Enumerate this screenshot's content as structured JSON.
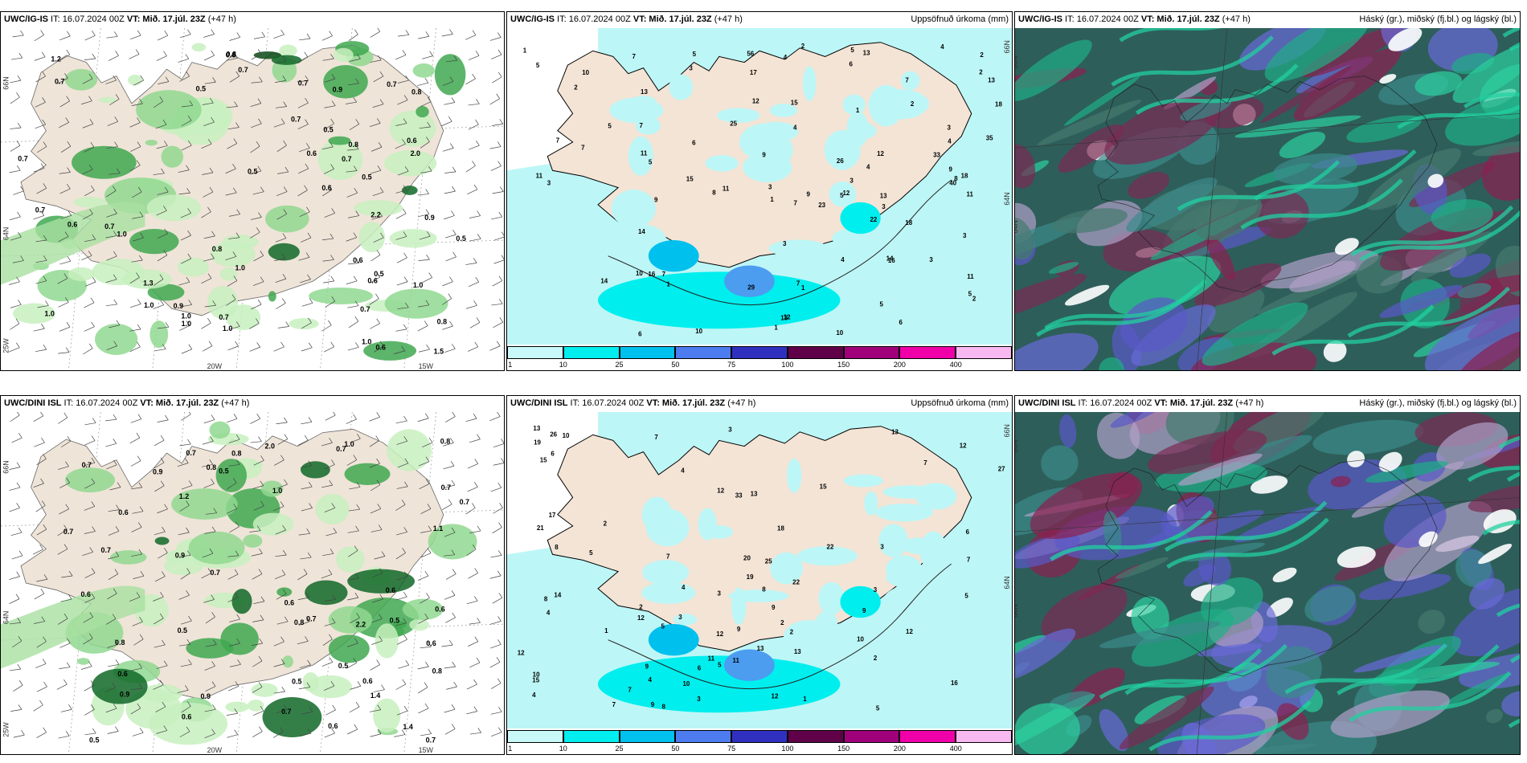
{
  "rows": [
    {
      "model": "UWC/IG-IS",
      "it_text": " IT: 16.07.2024 00Z ",
      "vt_label": "VT:",
      "vt_text": " Mið. 17.júl. 23Z",
      "lead": " (+47 h)",
      "panel2_title": "Uppsöfnuð úrkoma (mm)",
      "panel3_title": "Háský (gr.), miðský (fj.bl.) og lágský (bl.)",
      "p1_axis": [
        "66N",
        "64N",
        "20W",
        "15W",
        "25W"
      ],
      "p1_values": [
        "0.7",
        "0.6",
        "0.5",
        "0.7",
        "0.5",
        "0.7",
        "0.6",
        "1.0",
        "1.0",
        "0.8",
        "0.6",
        "0.5",
        "0.9",
        "0.8",
        "1.5",
        "0.6",
        "0.5",
        "0.6",
        "0.7",
        "1.3",
        "0.6",
        "0.7",
        "0.8",
        "0.7",
        "0.6",
        "0.5",
        "0.6",
        "0.7",
        "1.0",
        "2.0",
        "2.2",
        "0.8",
        "0.8",
        "0.7",
        "0.7",
        "1.0",
        "1.2",
        "1.0",
        "0.7",
        "1.0",
        "0.9",
        "1.0",
        "1.0",
        "0.5",
        "0.9",
        "0.7",
        "1.0"
      ],
      "p2_axis": [
        "66N",
        "64N"
      ],
      "p2_values": [
        "2",
        "1",
        "3",
        "2",
        "1",
        "2",
        "1",
        "2",
        "1",
        "4",
        "3",
        "5",
        "1",
        "4",
        "7",
        "5",
        "3",
        "6",
        "3",
        "2",
        "4",
        "9",
        "4",
        "3",
        "6",
        "5",
        "1",
        "12",
        "13",
        "14",
        "7",
        "5",
        "11",
        "9",
        "10",
        "8",
        "12",
        "9",
        "4",
        "3",
        "7",
        "3",
        "13",
        "14",
        "10",
        "5",
        "12",
        "7",
        "2",
        "10",
        "6",
        "11",
        "23",
        "18",
        "11",
        "3",
        "9",
        "8",
        "7",
        "13",
        "7",
        "18",
        "5",
        "17",
        "13",
        "11",
        "16",
        "22",
        "29",
        "56",
        "10",
        "33",
        "35",
        "26",
        "40",
        "13",
        "16",
        "18",
        "15",
        "25",
        "14",
        "15",
        "12",
        "11",
        "7",
        "5",
        "6",
        "4",
        "3",
        "7",
        "5"
      ],
      "p3_axis": [
        "66N",
        "64N"
      ]
    },
    {
      "model": "UWC/DINI ISL",
      "it_text": " IT: 16.07.2024 00Z ",
      "vt_label": "VT:",
      "vt_text": " Mið. 17.júl. 23Z",
      "lead": " (+47 h)",
      "panel2_title": "Uppsöfnuð úrkoma (mm)",
      "panel3_title": "Háský (gr.), miðský (fj.bl.) og lágský (bl.)",
      "p1_axis": [
        "66N",
        "64N",
        "20W",
        "15W",
        "25W"
      ],
      "p1_values": [
        "0.7",
        "0.7",
        "0.8",
        "1.0",
        "0.7",
        "0.9",
        "0.6",
        "1.0",
        "0.8",
        "0.5",
        "0.7",
        "1.4",
        "0.8",
        "0.7",
        "0.6",
        "0.7",
        "0.8",
        "0.6",
        "1.2",
        "0.5",
        "0.7",
        "0.6",
        "0.7",
        "2.2",
        "0.9",
        "0.8",
        "0.9",
        "0.6",
        "0.6",
        "0.8",
        "0.7",
        "0.6",
        "0.5",
        "0.7",
        "0.6",
        "0.5",
        "0.9",
        "1.1",
        "0.5",
        "2.0",
        "0.5",
        "0.6",
        "0.7",
        "1.4",
        "0.6"
      ],
      "p2_axis": [
        "66N",
        "64N"
      ],
      "p2_values": [
        "1",
        "2",
        "4",
        "3",
        "2",
        "4",
        "1",
        "2",
        "3",
        "4",
        "6",
        "3",
        "2",
        "8",
        "5",
        "7",
        "12",
        "6",
        "9",
        "13",
        "8",
        "10",
        "7",
        "9",
        "12",
        "11",
        "4",
        "7",
        "8",
        "5",
        "9",
        "13",
        "6",
        "3",
        "10",
        "12",
        "15",
        "11",
        "9",
        "12",
        "17",
        "13",
        "16",
        "5",
        "15",
        "12",
        "8",
        "9",
        "19",
        "13",
        "14",
        "12",
        "21",
        "22",
        "20",
        "26",
        "25",
        "33",
        "27",
        "19",
        "18",
        "10",
        "22",
        "15",
        "13",
        "12",
        "10",
        "7",
        "7",
        "5",
        "4",
        "3",
        "2",
        "3",
        "7",
        "5"
      ],
      "p3_axis": [
        "66N",
        "64N"
      ]
    }
  ],
  "colorbar": {
    "ticks": [
      "1",
      "10",
      "25",
      "50",
      "75",
      "100",
      "150",
      "200",
      "400"
    ],
    "colors": [
      "#c8f8f8",
      "#00eeee",
      "#00c0ee",
      "#4c7cf0",
      "#3030c0",
      "#600048",
      "#a0007a",
      "#f000a8",
      "#f8b8f0"
    ]
  }
}
